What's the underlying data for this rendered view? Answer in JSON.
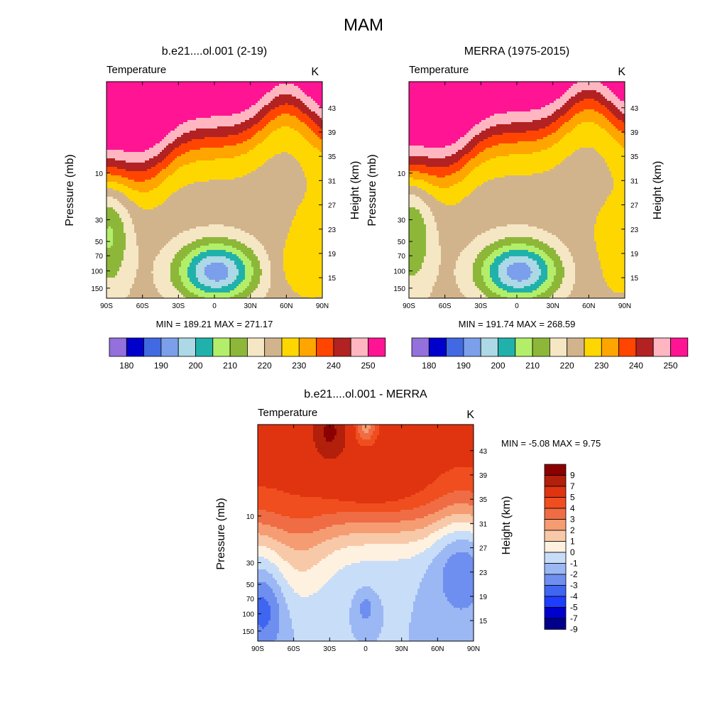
{
  "figure": {
    "title": "MAM"
  },
  "colors": {
    "abs_palette": [
      "#9370DB",
      "#0000CD",
      "#4169E1",
      "#7B9FEA",
      "#ADD8E6",
      "#20B2AA",
      "#B3EE6B",
      "#8DB739",
      "#F5E6C4",
      "#D2B48C",
      "#FFD700",
      "#FFA500",
      "#FF4500",
      "#B22222",
      "#FFB6C1",
      "#FF1493"
    ],
    "diff_palette": [
      "#00008B",
      "#0000CD",
      "#1E3DFF",
      "#3F66F0",
      "#6E8FF0",
      "#9BB8F4",
      "#C8DDF8",
      "#FFF1E0",
      "#F8C9A8",
      "#F59C72",
      "#EF6C45",
      "#F04E1E",
      "#E03410",
      "#B21F0A",
      "#8B0000"
    ]
  },
  "chart_data": [
    {
      "type": "heatmap",
      "title": "b.e21....ol.001 (2-19)",
      "subtitle_left": "Temperature",
      "subtitle_right": "K",
      "ylabel_left": "Pressure (mb)",
      "ylabel_right": "Height (km)",
      "x_ticks": [
        "90S",
        "60S",
        "30S",
        "0",
        "30N",
        "60N",
        "90N"
      ],
      "y_ticks_left": [
        "10",
        "30",
        "50",
        "70",
        "100",
        "150"
      ],
      "y_ticks_right": [
        "43",
        "39",
        "35",
        "31",
        "27",
        "23",
        "19",
        "15"
      ],
      "stats": "MIN = 189.21  MAX = 271.17",
      "colorbar_labels": [
        "180",
        "190",
        "200",
        "210",
        "220",
        "230",
        "240",
        "250"
      ],
      "contour_levels": [
        175,
        180,
        185,
        190,
        195,
        200,
        205,
        210,
        215,
        220,
        225,
        230,
        235,
        240,
        245,
        250,
        255
      ]
    },
    {
      "type": "heatmap",
      "title": "MERRA (1975-2015)",
      "subtitle_left": "Temperature",
      "subtitle_right": "K",
      "ylabel_left": "Pressure (mb)",
      "ylabel_right": "Height (km)",
      "x_ticks": [
        "90S",
        "60S",
        "30S",
        "0",
        "30N",
        "60N",
        "90N"
      ],
      "y_ticks_left": [
        "10",
        "30",
        "50",
        "70",
        "100",
        "150"
      ],
      "y_ticks_right": [
        "43",
        "39",
        "35",
        "31",
        "27",
        "23",
        "19",
        "15"
      ],
      "stats": "MIN = 191.74  MAX = 268.59",
      "colorbar_labels": [
        "180",
        "190",
        "200",
        "210",
        "220",
        "230",
        "240",
        "250"
      ],
      "contour_levels": [
        175,
        180,
        185,
        190,
        195,
        200,
        205,
        210,
        215,
        220,
        225,
        230,
        235,
        240,
        245,
        250,
        255
      ]
    },
    {
      "type": "heatmap",
      "title": "b.e21....ol.001 - MERRA",
      "subtitle_left": "Temperature",
      "subtitle_right": "K",
      "ylabel_left": "Pressure (mb)",
      "ylabel_right": "Height (km)",
      "x_ticks": [
        "90S",
        "60S",
        "30S",
        "0",
        "30N",
        "60N",
        "90N"
      ],
      "y_ticks_left": [
        "10",
        "30",
        "50",
        "70",
        "100",
        "150"
      ],
      "y_ticks_right": [
        "43",
        "39",
        "35",
        "31",
        "27",
        "23",
        "19",
        "15"
      ],
      "stats": "MIN =  -5.08  MAX =   9.75",
      "colorbar_labels": [
        "9",
        "7",
        "5",
        "4",
        "3",
        "2",
        "1",
        "0",
        "-1",
        "-2",
        "-3",
        "-4",
        "-5",
        "-7",
        "-9"
      ],
      "contour_levels": [
        -9,
        -7,
        -5,
        -4,
        -3,
        -2,
        -1,
        0,
        1,
        2,
        3,
        4,
        5,
        7,
        9
      ]
    }
  ]
}
